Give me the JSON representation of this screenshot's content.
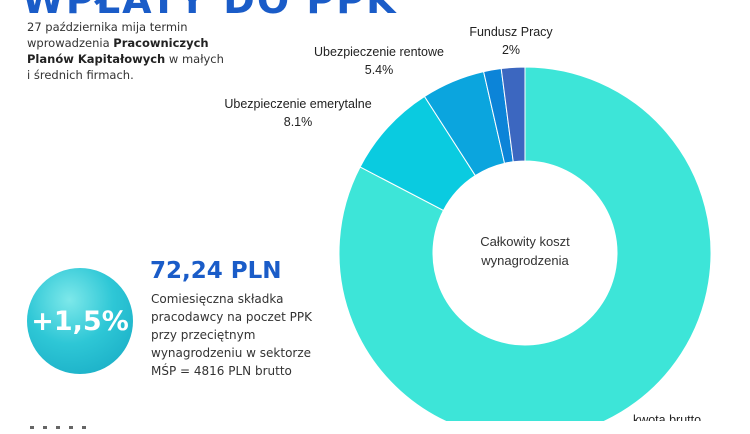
{
  "header": {
    "headline": "WPŁATY DO PPK",
    "intro_pre": "27 października mija termin wprowadzenia ",
    "intro_bold": "Pracowniczych Planów Kapitałowych",
    "intro_post": " w małych i średnich firmach."
  },
  "callout": {
    "badge": "+1,5%",
    "amount": "72,24 PLN",
    "description": "Comiesięczna składka pracodawcy na poczet PPK przy przeciętnym wynagrodzeniu w sektorze MŚP = 4816 PLN brutto"
  },
  "chart_data": {
    "type": "pie",
    "center_label": [
      "Całkowity koszt",
      "wynagrodzenia"
    ],
    "slices": [
      {
        "name": "kwota brutto",
        "value": 81.0,
        "label": "",
        "color": "#3de5d8"
      },
      {
        "name": "Ubezpieczenie emerytalne",
        "value": 8.1,
        "label": "8.1%",
        "color": "#0acbe0"
      },
      {
        "name": "Ubezpieczenie rentowe",
        "value": 5.4,
        "label": "5.4%",
        "color": "#0ba5de"
      },
      {
        "name": "",
        "value": 1.5,
        "label": "",
        "color": "#0c84d8"
      },
      {
        "name": "Fundusz Pracy",
        "value": 2.0,
        "label": "2%",
        "color": "#3c67c0"
      }
    ]
  }
}
